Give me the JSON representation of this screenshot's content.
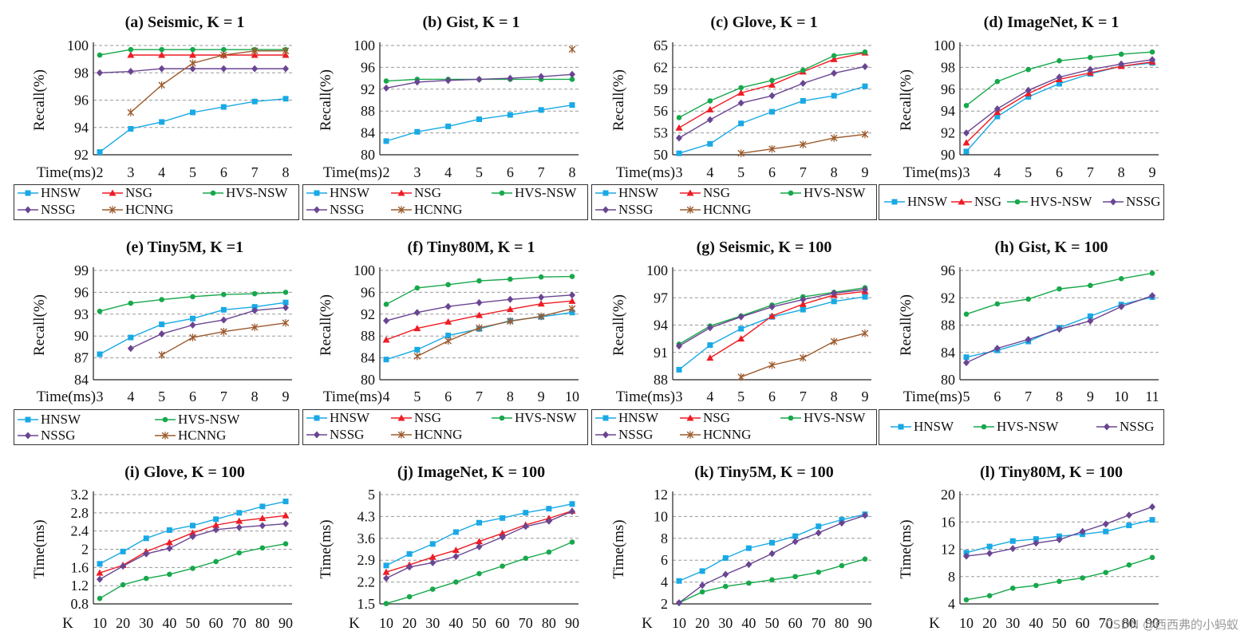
{
  "watermark": "CSDN @西西弗的小蚂蚁",
  "colors": {
    "HNSW": "#19a9e5",
    "NSG": "#ee1c24",
    "HVS-NSW": "#17a84b",
    "NSSG": "#6a4592",
    "HCNNG": "#9c5a2c"
  },
  "chart_data": [
    {
      "type": "line",
      "title": "(a) Seismic, K = 1",
      "ylabel": "Recall(%)",
      "xlabel": "Time(ms)",
      "categories": [
        "2",
        "3",
        "4",
        "5",
        "6",
        "7",
        "8"
      ],
      "yticks": [
        "92",
        "94",
        "96",
        "98",
        "100"
      ],
      "ylim": [
        92,
        100
      ],
      "series": [
        {
          "name": "HNSW",
          "values": [
            92.2,
            93.9,
            94.4,
            95.1,
            95.5,
            95.9,
            96.1
          ]
        },
        {
          "name": "NSG",
          "values": [
            null,
            99.3,
            99.3,
            99.3,
            99.3,
            99.3,
            99.3
          ]
        },
        {
          "name": "HVS-NSW",
          "values": [
            99.3,
            99.7,
            99.7,
            99.7,
            99.7,
            99.7,
            99.7
          ]
        },
        {
          "name": "NSSG",
          "values": [
            98.0,
            98.1,
            98.3,
            98.3,
            98.3,
            98.3,
            98.3
          ]
        },
        {
          "name": "HCNNG",
          "values": [
            null,
            95.1,
            97.1,
            98.7,
            99.3,
            99.6,
            99.6
          ]
        }
      ],
      "legend": [
        "HNSW",
        "NSG",
        "HVS-NSW",
        "NSSG",
        "HCNNG"
      ]
    },
    {
      "type": "line",
      "title": "(b) Gist, K = 1",
      "ylabel": "Recall(%)",
      "xlabel": "Time(ms)",
      "categories": [
        "2",
        "3",
        "4",
        "5",
        "6",
        "7",
        "8"
      ],
      "yticks": [
        "80",
        "84",
        "88",
        "92",
        "96",
        "100"
      ],
      "ylim": [
        80,
        100
      ],
      "series": [
        {
          "name": "HNSW",
          "values": [
            82.5,
            84.2,
            85.2,
            86.5,
            87.3,
            88.2,
            89.1
          ]
        },
        {
          "name": "HVS-NSW",
          "values": [
            93.5,
            93.8,
            93.8,
            93.8,
            93.8,
            93.8,
            93.8
          ]
        },
        {
          "name": "NSSG",
          "values": [
            92.2,
            93.3,
            93.6,
            93.8,
            94.0,
            94.3,
            94.7
          ]
        },
        {
          "name": "HCNNG",
          "values": [
            null,
            null,
            null,
            null,
            null,
            null,
            99.3
          ]
        }
      ],
      "legend": [
        "HNSW",
        "NSG",
        "HVS-NSW",
        "NSSG",
        "HCNNG"
      ]
    },
    {
      "type": "line",
      "title": "(c) Glove, K = 1",
      "ylabel": "Recall(%)",
      "xlabel": "Time(ms)",
      "categories": [
        "3",
        "4",
        "5",
        "6",
        "7",
        "8",
        "9"
      ],
      "yticks": [
        "50",
        "53",
        "56",
        "59",
        "62",
        "65"
      ],
      "ylim": [
        50,
        65
      ],
      "series": [
        {
          "name": "HNSW",
          "values": [
            50.2,
            51.5,
            54.3,
            55.9,
            57.4,
            58.1,
            59.4
          ]
        },
        {
          "name": "NSG",
          "values": [
            53.7,
            56.2,
            58.5,
            59.6,
            61.4,
            63.1,
            64.0
          ]
        },
        {
          "name": "HVS-NSW",
          "values": [
            55.1,
            57.4,
            59.2,
            60.2,
            61.6,
            63.6,
            64.1
          ]
        },
        {
          "name": "NSSG",
          "values": [
            52.3,
            54.8,
            57.1,
            58.1,
            59.8,
            61.2,
            62.1
          ]
        },
        {
          "name": "HCNNG",
          "values": [
            null,
            null,
            50.2,
            50.8,
            51.4,
            52.3,
            52.8
          ]
        }
      ],
      "legend": [
        "HNSW",
        "NSG",
        "HVS-NSW",
        "NSSG",
        "HCNNG"
      ]
    },
    {
      "type": "line",
      "title": "(d) ImageNet, K = 1",
      "ylabel": "Recall(%)",
      "xlabel": "Time(ms)",
      "categories": [
        "3",
        "4",
        "5",
        "6",
        "7",
        "8",
        "9"
      ],
      "yticks": [
        "90",
        "92",
        "94",
        "96",
        "98",
        "100"
      ],
      "ylim": [
        90,
        100
      ],
      "series": [
        {
          "name": "HNSW",
          "values": [
            90.3,
            93.5,
            95.3,
            96.5,
            97.4,
            98.1,
            98.4
          ]
        },
        {
          "name": "NSG",
          "values": [
            91.1,
            93.9,
            95.6,
            96.9,
            97.5,
            98.1,
            98.5
          ]
        },
        {
          "name": "HVS-NSW",
          "values": [
            94.5,
            96.7,
            97.8,
            98.6,
            98.9,
            99.2,
            99.4
          ]
        },
        {
          "name": "NSSG",
          "values": [
            92.0,
            94.2,
            95.9,
            97.1,
            97.8,
            98.3,
            98.7
          ]
        }
      ],
      "legend": [
        "HNSW",
        "NSG",
        "HVS-NSW",
        "NSSG"
      ]
    },
    {
      "type": "line",
      "title": "(e) Tiny5M, K =1",
      "ylabel": "Recall(%)",
      "xlabel": "Time(ms)",
      "categories": [
        "3",
        "4",
        "5",
        "6",
        "7",
        "8",
        "9"
      ],
      "yticks": [
        "84",
        "87",
        "90",
        "93",
        "96",
        "99"
      ],
      "ylim": [
        84,
        99
      ],
      "series": [
        {
          "name": "HNSW",
          "values": [
            87.5,
            89.8,
            91.6,
            92.4,
            93.6,
            94.0,
            94.6
          ]
        },
        {
          "name": "HVS-NSW",
          "values": [
            93.4,
            94.5,
            95.0,
            95.4,
            95.7,
            95.8,
            96.0
          ]
        },
        {
          "name": "NSSG",
          "values": [
            null,
            88.3,
            90.3,
            91.5,
            92.2,
            93.5,
            93.9
          ]
        },
        {
          "name": "HCNNG",
          "values": [
            null,
            null,
            87.4,
            89.8,
            90.6,
            91.2,
            91.8
          ]
        }
      ],
      "legend": [
        "HNSW",
        "HVS-NSW",
        "NSSG",
        "HCNNG"
      ]
    },
    {
      "type": "line",
      "title": "(f) Tiny80M, K = 1",
      "ylabel": "Recall(%)",
      "xlabel": "Time(ms)",
      "categories": [
        "4",
        "5",
        "6",
        "7",
        "8",
        "9",
        "10"
      ],
      "yticks": [
        "80",
        "84",
        "88",
        "92",
        "96",
        "100"
      ],
      "ylim": [
        80,
        100
      ],
      "series": [
        {
          "name": "HNSW",
          "values": [
            83.7,
            85.5,
            88.1,
            89.3,
            90.8,
            91.5,
            92.3
          ]
        },
        {
          "name": "NSG",
          "values": [
            87.3,
            89.4,
            90.6,
            91.8,
            92.9,
            93.9,
            94.4
          ]
        },
        {
          "name": "HVS-NSW",
          "values": [
            93.8,
            96.8,
            97.4,
            98.1,
            98.4,
            98.8,
            98.9
          ]
        },
        {
          "name": "NSSG",
          "values": [
            90.8,
            92.3,
            93.4,
            94.1,
            94.7,
            95.1,
            95.5
          ]
        },
        {
          "name": "HCNNG",
          "values": [
            null,
            84.3,
            87.1,
            89.5,
            90.7,
            91.6,
            93.0
          ]
        }
      ],
      "legend": [
        "HNSW",
        "NSG",
        "HVS-NSW",
        "NSSG",
        "HCNNG"
      ]
    },
    {
      "type": "line",
      "title": "(g) Seismic, K = 100",
      "ylabel": "Recall(%)",
      "xlabel": "Time(ms)",
      "categories": [
        "3",
        "4",
        "5",
        "6",
        "7",
        "8",
        "9"
      ],
      "yticks": [
        "88",
        "91",
        "94",
        "97",
        "100"
      ],
      "ylim": [
        88,
        100
      ],
      "series": [
        {
          "name": "HNSW",
          "values": [
            89.1,
            91.8,
            93.6,
            94.9,
            95.7,
            96.6,
            97.1
          ]
        },
        {
          "name": "NSG",
          "values": [
            null,
            90.4,
            92.5,
            95.0,
            96.3,
            97.3,
            97.7
          ]
        },
        {
          "name": "HVS-NSW",
          "values": [
            91.9,
            93.9,
            95.0,
            96.2,
            97.1,
            97.6,
            98.1
          ]
        },
        {
          "name": "NSSG",
          "values": [
            91.7,
            93.7,
            94.9,
            96.0,
            96.8,
            97.5,
            97.9
          ]
        },
        {
          "name": "HCNNG",
          "values": [
            null,
            null,
            88.3,
            89.6,
            90.4,
            92.2,
            93.1
          ]
        }
      ],
      "legend": [
        "HNSW",
        "NSG",
        "HVS-NSW",
        "NSSG",
        "HCNNG"
      ]
    },
    {
      "type": "line",
      "title": "(h) Gist, K = 100",
      "ylabel": "Recall(%)",
      "xlabel": "Time(ms)",
      "categories": [
        "5",
        "6",
        "7",
        "8",
        "9",
        "10",
        "11"
      ],
      "yticks": [
        "80",
        "84",
        "88",
        "92",
        "96"
      ],
      "ylim": [
        80,
        96
      ],
      "series": [
        {
          "name": "HNSW",
          "values": [
            83.3,
            84.3,
            85.6,
            87.6,
            89.3,
            91.0,
            92.1
          ]
        },
        {
          "name": "HVS-NSW",
          "values": [
            89.6,
            91.1,
            91.8,
            93.3,
            93.8,
            94.8,
            95.6
          ]
        },
        {
          "name": "NSSG",
          "values": [
            82.5,
            84.6,
            85.9,
            87.4,
            88.6,
            90.7,
            92.3
          ]
        }
      ],
      "legend": [
        "HNSW",
        "HVS-NSW",
        "NSSG"
      ]
    },
    {
      "type": "line",
      "title": "(i) Glove, K = 100",
      "ylabel": "Time(ms)",
      "xlabel": "K",
      "categories": [
        "10",
        "20",
        "30",
        "40",
        "50",
        "60",
        "70",
        "80",
        "90"
      ],
      "yticks": [
        "0.8",
        "1.2",
        "1.6",
        "2",
        "2.4",
        "2.8",
        "3.2"
      ],
      "ylim": [
        0.8,
        3.2
      ],
      "series": [
        {
          "name": "HNSW",
          "values": [
            1.68,
            1.95,
            2.24,
            2.42,
            2.52,
            2.66,
            2.8,
            2.94,
            3.05
          ]
        },
        {
          "name": "NSG",
          "values": [
            1.48,
            1.65,
            1.95,
            2.15,
            2.36,
            2.53,
            2.62,
            2.68,
            2.74
          ]
        },
        {
          "name": "HVS-NSW",
          "values": [
            0.92,
            1.22,
            1.36,
            1.45,
            1.58,
            1.73,
            1.92,
            2.03,
            2.12
          ]
        },
        {
          "name": "NSSG",
          "values": [
            1.34,
            1.63,
            1.9,
            2.02,
            2.28,
            2.43,
            2.48,
            2.52,
            2.56
          ]
        }
      ],
      "legend": []
    },
    {
      "type": "line",
      "title": "(j) ImageNet, K = 100",
      "ylabel": "Time(ms)",
      "xlabel": "K",
      "categories": [
        "10",
        "20",
        "30",
        "40",
        "50",
        "60",
        "70",
        "80",
        "90"
      ],
      "yticks": [
        "1.5",
        "2.2",
        "2.9",
        "3.6",
        "4.3",
        "5"
      ],
      "ylim": [
        1.5,
        5
      ],
      "series": [
        {
          "name": "HNSW",
          "values": [
            2.73,
            3.1,
            3.42,
            3.8,
            4.1,
            4.25,
            4.42,
            4.55,
            4.7
          ]
        },
        {
          "name": "NSG",
          "values": [
            2.52,
            2.75,
            3.0,
            3.22,
            3.5,
            3.76,
            4.03,
            4.24,
            4.48
          ]
        },
        {
          "name": "HVS-NSW",
          "values": [
            1.51,
            1.73,
            1.97,
            2.2,
            2.47,
            2.71,
            2.96,
            3.16,
            3.48
          ]
        },
        {
          "name": "NSSG",
          "values": [
            2.32,
            2.68,
            2.82,
            3.02,
            3.33,
            3.64,
            3.98,
            4.15,
            4.46
          ]
        }
      ],
      "legend": []
    },
    {
      "type": "line",
      "title": "(k) Tiny5M, K = 100",
      "ylabel": "Time(ms)",
      "xlabel": "K",
      "categories": [
        "10",
        "20",
        "30",
        "40",
        "50",
        "60",
        "70",
        "80",
        "90"
      ],
      "yticks": [
        "2",
        "4",
        "6",
        "8",
        "10",
        "12"
      ],
      "ylim": [
        2,
        12
      ],
      "series": [
        {
          "name": "HNSW",
          "values": [
            4.1,
            5.0,
            6.2,
            7.1,
            7.6,
            8.2,
            9.1,
            9.7,
            10.2
          ]
        },
        {
          "name": "HVS-NSW",
          "values": [
            2.1,
            3.1,
            3.6,
            3.9,
            4.2,
            4.5,
            4.9,
            5.5,
            6.1
          ]
        },
        {
          "name": "NSSG",
          "values": [
            2.1,
            3.7,
            4.7,
            5.6,
            6.6,
            7.7,
            8.5,
            9.4,
            10.1
          ]
        }
      ],
      "legend": []
    },
    {
      "type": "line",
      "title": "(l) Tiny80M, K = 100",
      "ylabel": "Time(ms)",
      "xlabel": "K",
      "categories": [
        "10",
        "20",
        "30",
        "40",
        "50",
        "60",
        "70",
        "80",
        "90"
      ],
      "yticks": [
        "4",
        "8",
        "12",
        "16",
        "20"
      ],
      "ylim": [
        4,
        20
      ],
      "series": [
        {
          "name": "HNSW",
          "values": [
            11.5,
            12.4,
            13.2,
            13.5,
            13.9,
            14.2,
            14.6,
            15.5,
            16.3
          ]
        },
        {
          "name": "HVS-NSW",
          "values": [
            4.6,
            5.2,
            6.3,
            6.7,
            7.3,
            7.8,
            8.6,
            9.7,
            10.8
          ]
        },
        {
          "name": "NSSG",
          "values": [
            11.0,
            11.4,
            12.1,
            12.9,
            13.4,
            14.6,
            15.7,
            17.0,
            18.2
          ]
        }
      ],
      "legend": []
    }
  ]
}
